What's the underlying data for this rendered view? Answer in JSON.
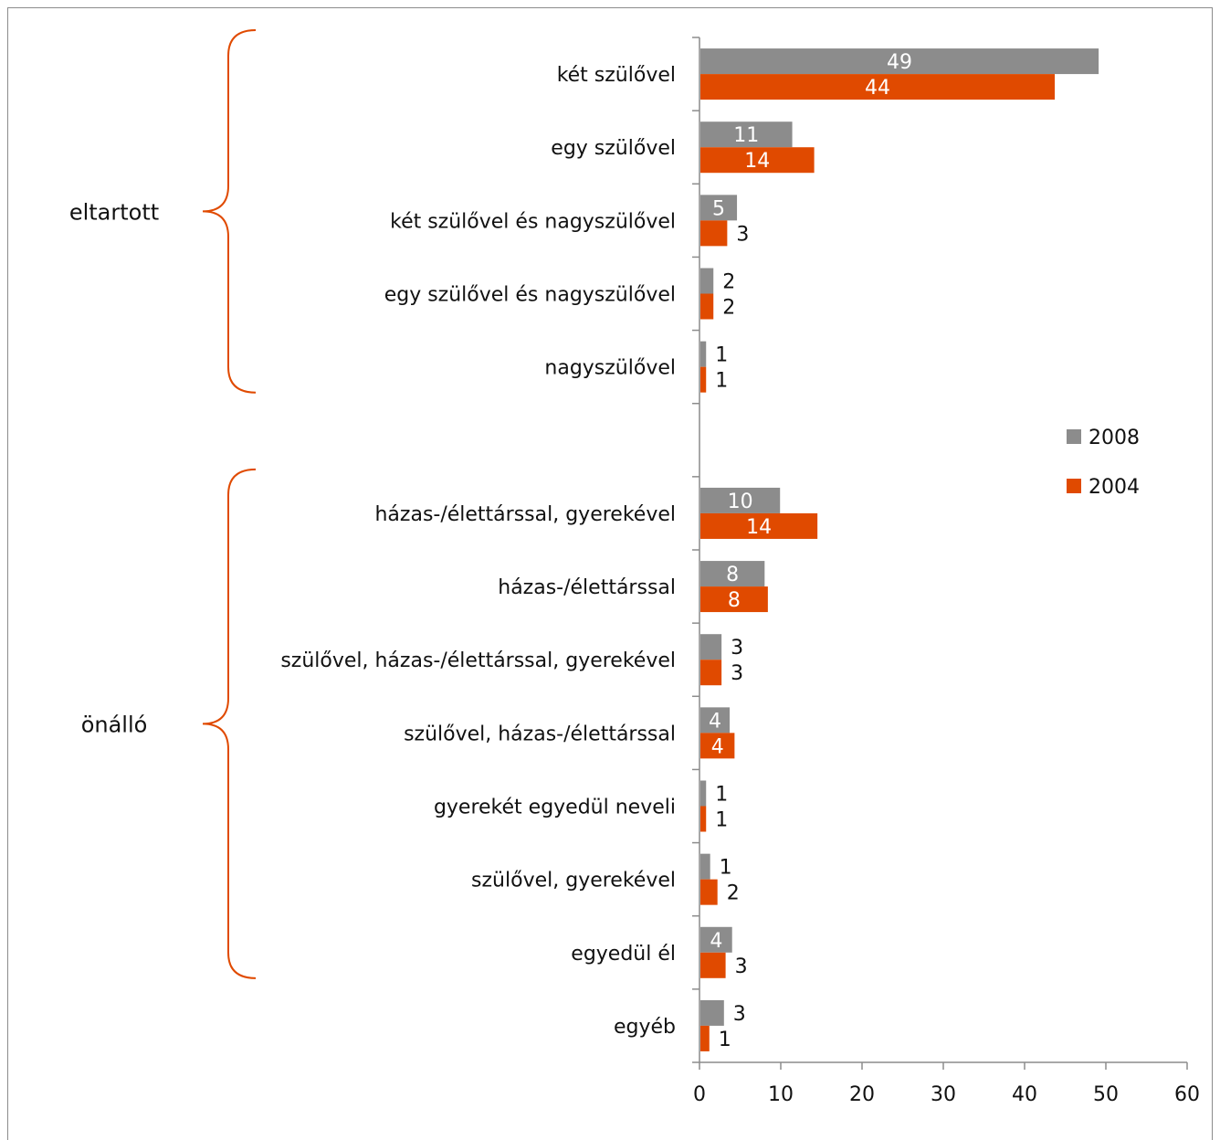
{
  "chart_data": {
    "type": "bar",
    "orientation": "horizontal",
    "categories": [
      "két szülővel",
      "egy szülővel",
      "két szülővel és nagyszülővel",
      "egy szülővel és nagyszülővel",
      "nagyszülővel",
      "",
      "házas-/élettárssal, gyerekével",
      "házas-/élettárssal",
      "szülővel, házas-/élettárssal, gyerekével",
      "szülővel, házas-/élettárssal",
      "gyerekét egyedül neveli",
      "szülővel, gyerekével",
      "egyedül él",
      "egyéb"
    ],
    "series": [
      {
        "name": "2008",
        "color": "#8c8c8c",
        "values": [
          49,
          11.3,
          4.5,
          1.6,
          0.7,
          null,
          9.8,
          7.9,
          2.6,
          3.6,
          0.7,
          1.2,
          3.9,
          2.9
        ],
        "labels": [
          "49",
          "11",
          "5",
          "2",
          "1",
          "",
          "10",
          "8",
          "3",
          "4",
          "1",
          "1",
          "4",
          "3"
        ]
      },
      {
        "name": "2004",
        "color": "#e04a00",
        "values": [
          43.6,
          14,
          3.3,
          1.6,
          0.7,
          null,
          14.4,
          8.3,
          2.6,
          4.2,
          0.7,
          2.1,
          3.1,
          1.1
        ],
        "labels": [
          "44",
          "14",
          "3",
          "2",
          "1",
          "",
          "14",
          "8",
          "3",
          "4",
          "1",
          "2",
          "3",
          "1"
        ]
      }
    ],
    "xlim": [
      0,
      60
    ],
    "xticks": [
      "0",
      "10",
      "20",
      "30",
      "40",
      "50",
      "60"
    ],
    "legend_placement": "right",
    "groups": [
      {
        "label": "eltartott",
        "from": 0,
        "to": 4
      },
      {
        "label": "önálló",
        "from": 6,
        "to": 12
      }
    ],
    "brace_color": "#e04a00"
  }
}
